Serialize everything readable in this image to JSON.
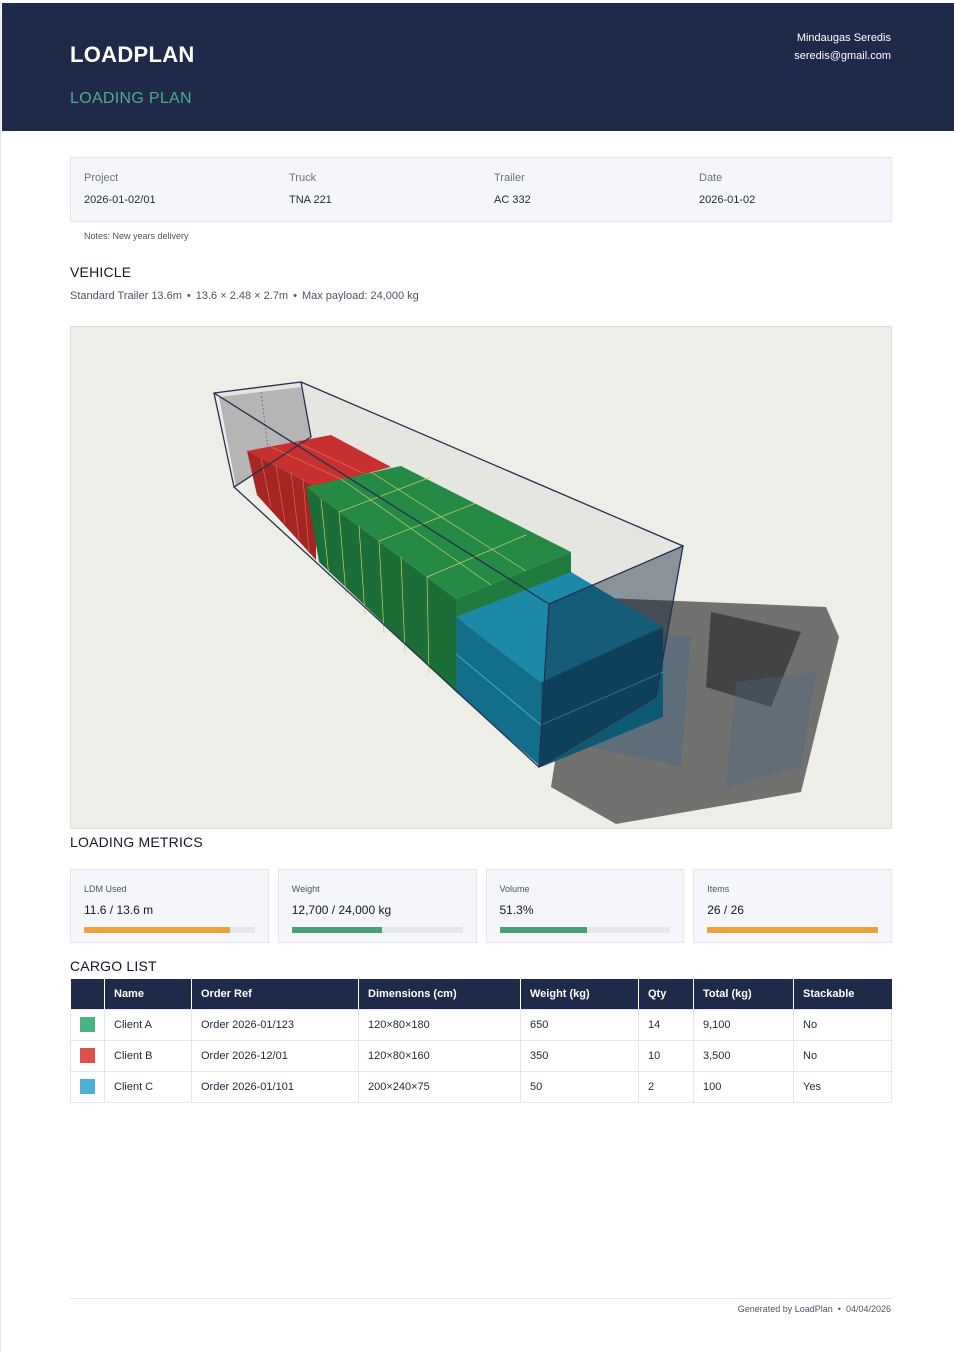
{
  "header": {
    "brand": "LOADPLAN",
    "subtitle": "LOADING PLAN",
    "user_name": "Mindaugas Seredis",
    "user_email": "seredis@gmail.com"
  },
  "info": [
    {
      "label": "Project",
      "value": "2026-01-02/01"
    },
    {
      "label": "Truck",
      "value": "TNA 221"
    },
    {
      "label": "Trailer",
      "value": "AC 332"
    },
    {
      "label": "Date",
      "value": "2026-01-02"
    }
  ],
  "notes": "Notes: New years delivery",
  "vehicle": {
    "title": "VEHICLE",
    "name": "Standard Trailer 13.6m",
    "dimensions": "13.6 × 2.48 × 2.7m",
    "payload": "Max payload: 24,000 kg",
    "separator": "•"
  },
  "metrics": {
    "title": "LOADING METRICS",
    "items": [
      {
        "label": "LDM Used",
        "value": "11.6 / 13.6 m",
        "fraction": 0.853,
        "color": "#e8a33d"
      },
      {
        "label": "Weight",
        "value": "12,700 / 24,000 kg",
        "fraction": 0.529,
        "color": "#4a9e78"
      },
      {
        "label": "Volume",
        "value": "51.3%",
        "fraction": 0.513,
        "color": "#4a9e78"
      },
      {
        "label": "Items",
        "value": "26 / 26",
        "fraction": 1.0,
        "color": "#e8a33d"
      }
    ]
  },
  "cargo": {
    "title": "CARGO LIST",
    "columns": [
      "",
      "Name",
      "Order Ref",
      "Dimensions (cm)",
      "Weight (kg)",
      "Qty",
      "Total (kg)",
      "Stackable"
    ],
    "rows": [
      {
        "color": "#4bb383",
        "name": "Client A",
        "order": "Order 2026-01/123",
        "dims": "120×80×180",
        "weight": "650",
        "qty": "14",
        "total": "9,100",
        "stackable": "No"
      },
      {
        "color": "#e0504b",
        "name": "Client B",
        "order": "Order 2026-12/01",
        "dims": "120×80×160",
        "weight": "350",
        "qty": "10",
        "total": "3,500",
        "stackable": "No"
      },
      {
        "color": "#4bb0d3",
        "name": "Client C",
        "order": "Order 2026-01/101",
        "dims": "200×240×75",
        "weight": "50",
        "qty": "2",
        "total": "100",
        "stackable": "Yes"
      }
    ]
  },
  "footer": {
    "generated": "Generated by LoadPlan",
    "separator": "•",
    "date": "04/04/2026"
  }
}
